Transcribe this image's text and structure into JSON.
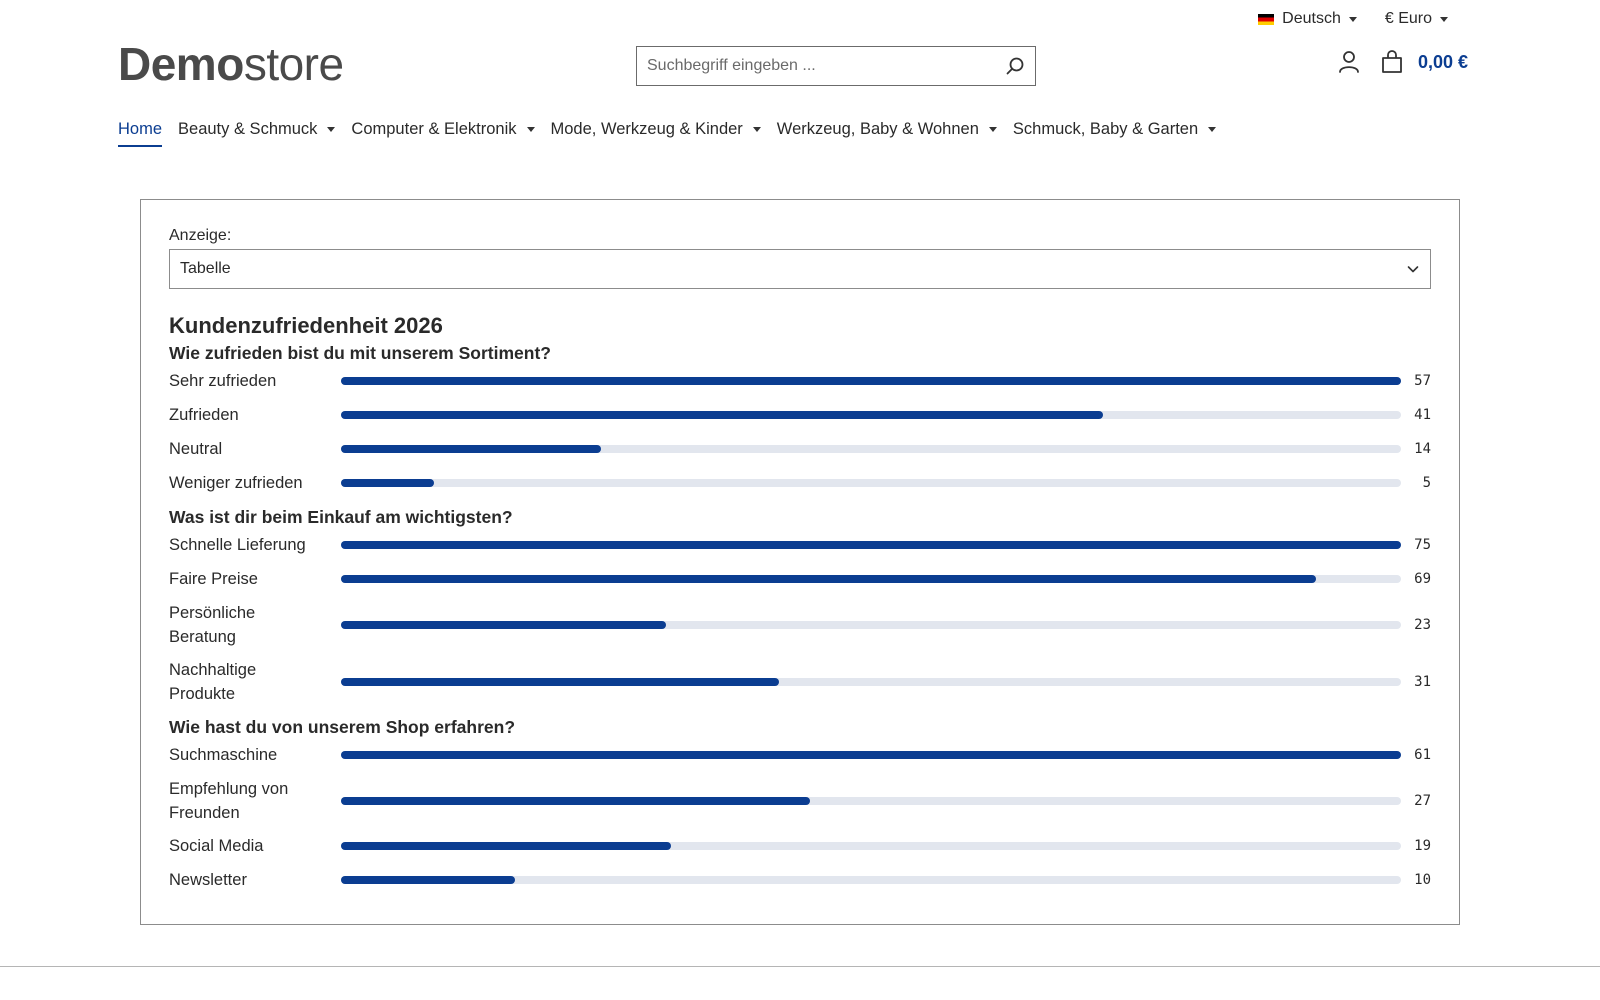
{
  "top_bar": {
    "language_label": "Deutsch",
    "currency_label": "€ Euro"
  },
  "header": {
    "logo_bold": "Demo",
    "logo_light": "store",
    "search_placeholder": "Suchbegriff eingeben ...",
    "cart_total": "0,00 €"
  },
  "nav": {
    "items": [
      {
        "label": "Home",
        "active": true,
        "dropdown": false
      },
      {
        "label": "Beauty & Schmuck",
        "active": false,
        "dropdown": true
      },
      {
        "label": "Computer & Elektronik",
        "active": false,
        "dropdown": true
      },
      {
        "label": "Mode, Werkzeug & Kinder",
        "active": false,
        "dropdown": true
      },
      {
        "label": "Werkzeug, Baby & Wohnen",
        "active": false,
        "dropdown": true
      },
      {
        "label": "Schmuck, Baby & Garten",
        "active": false,
        "dropdown": true
      }
    ]
  },
  "display": {
    "label": "Anzeige:",
    "selected": "Tabelle"
  },
  "survey": {
    "title": "Kundenzufriedenheit 2026",
    "questions": [
      {
        "question": "Wie zufrieden bist du mit unserem Sortiment?",
        "answers": [
          {
            "label": "Sehr zufrieden",
            "count": 57
          },
          {
            "label": "Zufrieden",
            "count": 41
          },
          {
            "label": "Neutral",
            "count": 14
          },
          {
            "label": "Weniger zufrieden",
            "count": 5
          }
        ]
      },
      {
        "question": "Was ist dir beim Einkauf am wichtigsten?",
        "answers": [
          {
            "label": "Schnelle Lieferung",
            "count": 75
          },
          {
            "label": "Faire Preise",
            "count": 69
          },
          {
            "label": "Persönliche Beratung",
            "count": 23
          },
          {
            "label": "Nachhaltige Produkte",
            "count": 31
          }
        ]
      },
      {
        "question": "Wie hast du von unserem Shop erfahren?",
        "answers": [
          {
            "label": "Suchmaschine",
            "count": 61
          },
          {
            "label": "Empfehlung von Freunden",
            "count": 27
          },
          {
            "label": "Social Media",
            "count": 19
          },
          {
            "label": "Newsletter",
            "count": 10
          }
        ]
      }
    ]
  },
  "colors": {
    "accent": "#0b3d91",
    "track": "#e2e6ee",
    "text": "#2a2a2a"
  }
}
